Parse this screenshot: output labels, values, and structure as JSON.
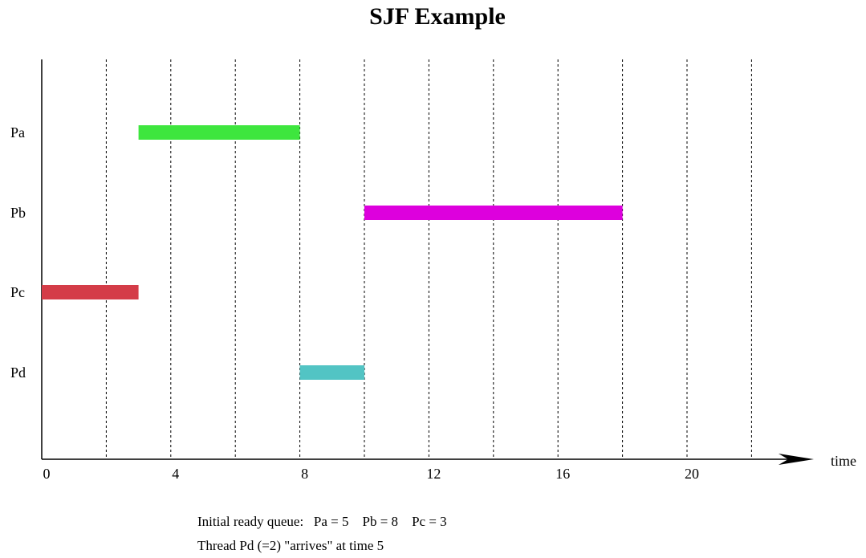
{
  "chart_data": {
    "type": "gantt",
    "title": "SJF Example",
    "xlabel": "time",
    "xlim": [
      0,
      22
    ],
    "x_ticks": [
      0,
      4,
      8,
      12,
      16,
      20
    ],
    "gridlines_x": [
      2,
      4,
      6,
      8,
      10,
      12,
      14,
      16,
      18,
      20,
      22
    ],
    "grid": "dotted vertical",
    "rows": [
      "Pa",
      "Pb",
      "Pc",
      "Pd"
    ],
    "series": [
      {
        "name": "Pa",
        "start": 3,
        "end": 8,
        "color": "#3ee63e"
      },
      {
        "name": "Pb",
        "start": 10,
        "end": 18,
        "color": "#dd00dd"
      },
      {
        "name": "Pc",
        "start": 0,
        "end": 3,
        "color": "#d43c48"
      },
      {
        "name": "Pd",
        "start": 8,
        "end": 10,
        "color": "#52c4c4"
      }
    ]
  },
  "notes": {
    "queue_label": "Initial ready queue:",
    "queue_items": [
      "Pa = 5",
      "Pb = 8",
      "Pc = 3"
    ],
    "arrival": "Thread Pd (=2) \"arrives\" at time 5"
  }
}
